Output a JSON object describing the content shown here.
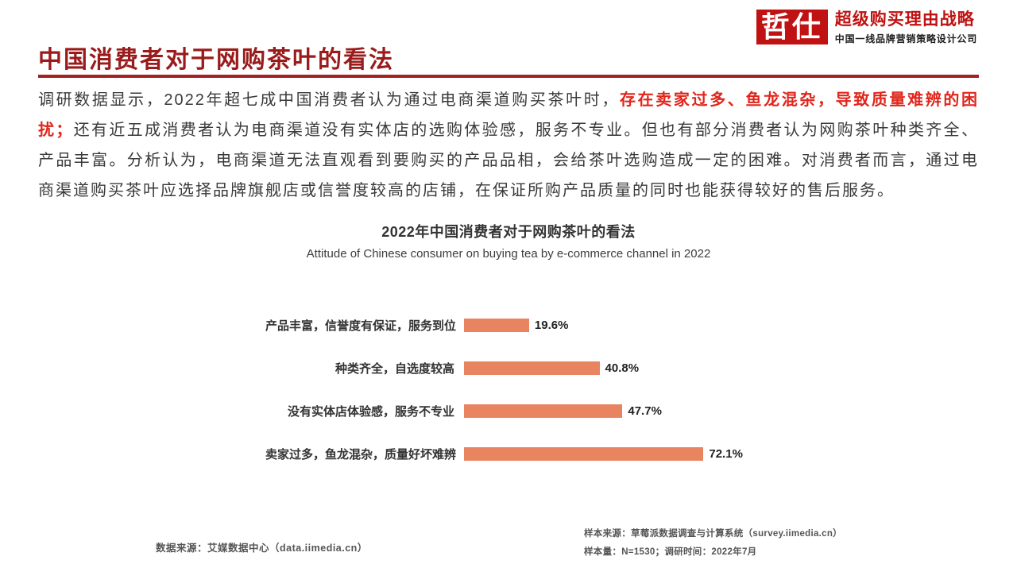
{
  "brand": {
    "logo_text": "哲仕",
    "tagline": "超级购买理由战略",
    "subtitle": "中国一线品牌营销策略设计公司"
  },
  "page": {
    "title": "中国消费者对于网购茶叶的看法"
  },
  "body": {
    "segments": [
      {
        "text": "调研数据显示，2022年超七成中国消费者认为通过电商渠道购买茶叶时，",
        "highlight": false
      },
      {
        "text": "存在卖家过多、鱼龙混杂，导致质量难辨的困扰；",
        "highlight": true
      },
      {
        "text": "还有近五成消费者认为电商渠道没有实体店的选购体验感，服务不专业。但也有部分消费者认为网购茶叶种类齐全、产品丰富。分析认为，电商渠道无法直观看到要购买的产品品相，会给茶叶选购造成一定的困难。对消费者而言，通过电商渠道购买茶叶应选择品牌旗舰店或信誉度较高的店铺，在保证所购产品质量的同时也能获得较好的售后服务。",
        "highlight": false
      }
    ]
  },
  "chart_data": {
    "type": "bar",
    "orientation": "horizontal",
    "title": "2022年中国消费者对于网购茶叶的看法",
    "subtitle": "Attitude of Chinese consumer on buying tea by e-commerce channel in 2022",
    "categories": [
      "产品丰富，信誉度有保证，服务到位",
      "种类齐全，自选度较高",
      "没有实体店体验感，服务不专业",
      "卖家过多，鱼龙混杂，质量好坏难辨"
    ],
    "values": [
      19.6,
      40.8,
      47.7,
      72.1
    ],
    "value_labels": [
      "19.6%",
      "40.8%",
      "47.7%",
      "72.1%"
    ],
    "xlim": [
      0,
      100
    ],
    "grid": false,
    "legend": false,
    "bar_color": "#E8845F"
  },
  "footer": {
    "data_source": "数据来源：艾媒数据中心（data.iimedia.cn）",
    "sample_source": "样本来源：草莓派数据调查与计算系统（survey.iimedia.cn）",
    "sample_info": "样本量：N=1530；调研时间：2022年7月"
  },
  "colors": {
    "title_red": "#9A1B1B",
    "line_red": "#A32020",
    "brand_red": "#C01212",
    "highlight_red": "#E1251B",
    "bar_color": "#E8845F"
  }
}
